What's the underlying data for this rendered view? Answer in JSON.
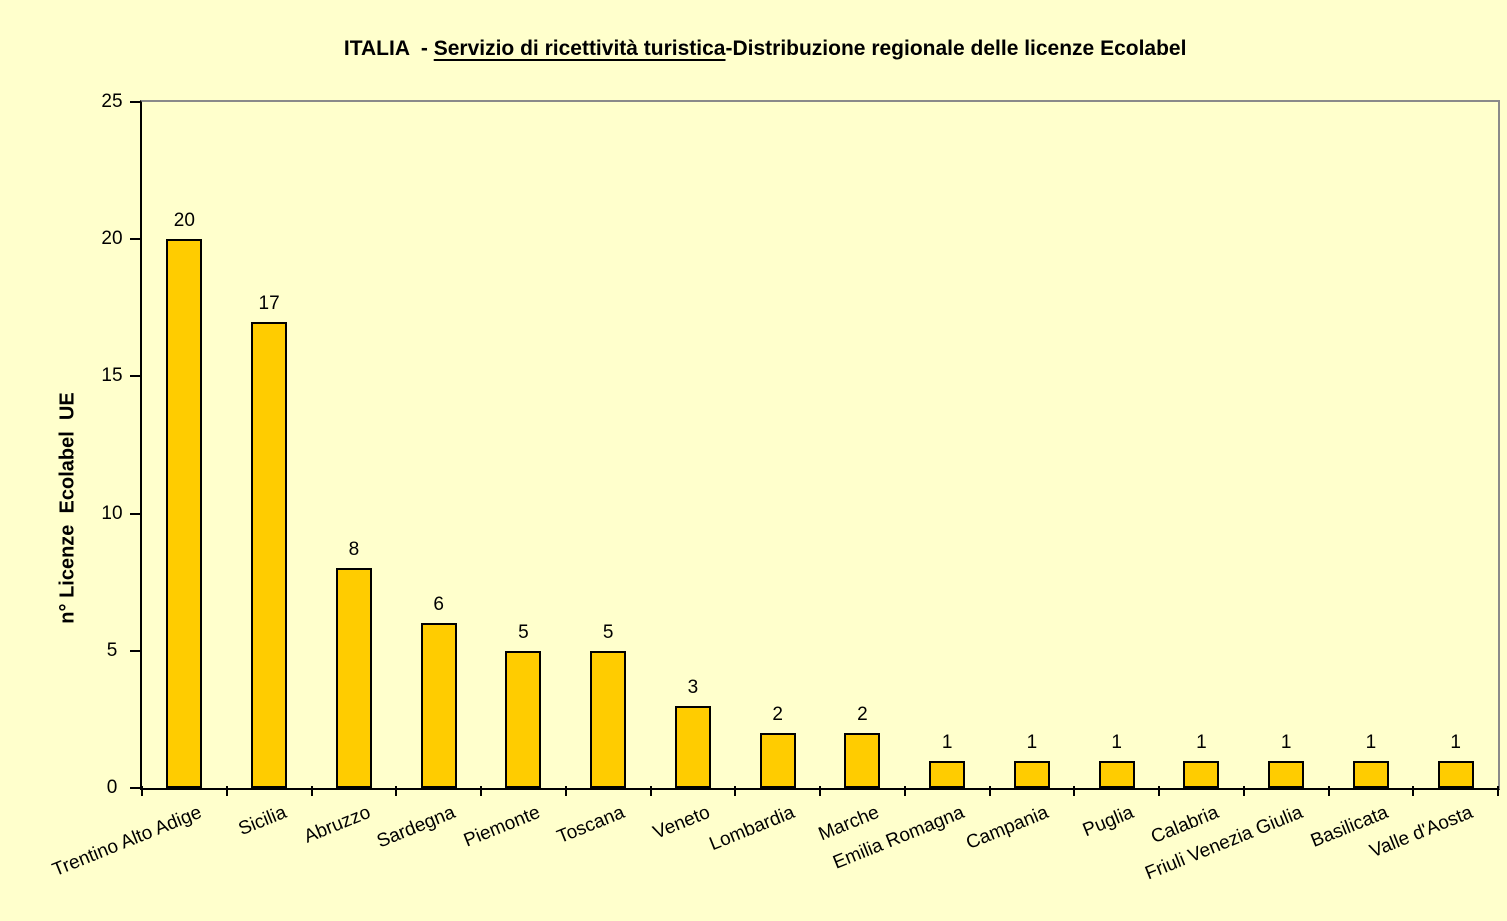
{
  "page": {
    "background": "#FFFFCC"
  },
  "chart_data": {
    "type": "bar",
    "title": "ITALIA  - Servizio di ricettività turistica-Distribuzione regionale delle licenze Ecolabel",
    "title_parts": {
      "prefix": "ITALIA  - ",
      "underlined": "Servizio di ricettività turistica",
      "suffix": "-Distribuzione regionale delle licenze Ecolabel"
    },
    "categories": [
      "Trentino Alto Adige",
      "Sicilia",
      "Abruzzo",
      "Sardegna",
      "Piemonte",
      "Toscana",
      "Veneto",
      "Lombardia",
      "Marche",
      "Emilia Romagna",
      "Campania",
      "Puglia",
      "Calabria",
      "Friuli Venezia Giulia",
      "Basilicata",
      "Valle d'Aosta"
    ],
    "values": [
      20,
      17,
      8,
      6,
      5,
      5,
      3,
      2,
      2,
      1,
      1,
      1,
      1,
      1,
      1,
      1
    ],
    "xlabel": "",
    "ylabel": "n° Licenze  Ecolabel  UE",
    "ylim": [
      0,
      25
    ],
    "yticks": [
      0,
      5,
      10,
      15,
      20,
      25
    ],
    "grid": false,
    "legend": false,
    "bar_value_labels_shown": true,
    "x_tick_label_rotation_deg": -22,
    "colors": {
      "background": "#FFFFCC",
      "bar_fill": "#FFCC00",
      "bar_border": "#000000",
      "axis": "#000000",
      "plot_border": "#8A8A8A",
      "text": "#000000"
    }
  }
}
